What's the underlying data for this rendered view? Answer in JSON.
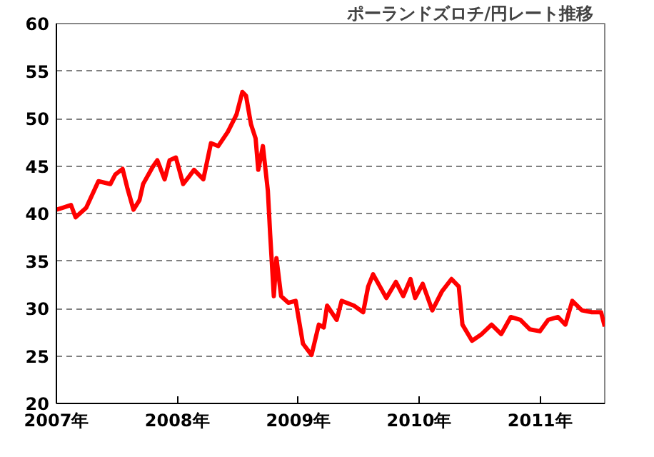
{
  "chart_data": {
    "type": "line",
    "title": "ポーランドズロチ/円レート推移",
    "x": [
      "2007-01-01",
      "2007-01-19",
      "2007-02-14",
      "2007-02-28",
      "2007-04-01",
      "2007-05-08",
      "2007-06-13",
      "2007-06-28",
      "2007-07-20",
      "2007-08-04",
      "2007-08-22",
      "2007-09-09",
      "2007-09-20",
      "2007-10-19",
      "2007-11-02",
      "2007-11-24",
      "2007-12-09",
      "2007-12-28",
      "2008-01-19",
      "2008-02-06",
      "2008-02-21",
      "2008-03-20",
      "2008-04-12",
      "2008-05-04",
      "2008-06-02",
      "2008-06-28",
      "2008-07-16",
      "2008-07-27",
      "2008-08-11",
      "2008-08-25",
      "2008-09-02",
      "2008-09-16",
      "2008-10-01",
      "2008-10-08",
      "2008-10-19",
      "2008-10-27",
      "2008-11-10",
      "2008-12-02",
      "2008-12-24",
      "2009-01-15",
      "2009-02-10",
      "2009-03-04",
      "2009-03-19",
      "2009-03-29",
      "2009-04-27",
      "2009-05-12",
      "2009-06-18",
      "2009-07-16",
      "2009-07-31",
      "2009-08-15",
      "2009-09-24",
      "2009-10-23",
      "2009-11-14",
      "2009-12-06",
      "2009-12-20",
      "2010-01-12",
      "2010-02-10",
      "2010-03-11",
      "2010-04-09",
      "2010-05-01",
      "2010-05-12",
      "2010-06-10",
      "2010-07-09",
      "2010-08-08",
      "2010-09-06",
      "2010-10-05",
      "2010-11-03",
      "2010-12-02",
      "2011-01-01",
      "2011-01-26",
      "2011-02-25",
      "2011-03-19",
      "2011-04-09",
      "2011-05-08",
      "2011-06-07",
      "2011-07-05",
      "2011-07-16"
    ],
    "series": [
      {
        "color": "#ff0000",
        "values": [
          40.4,
          40.6,
          40.9,
          39.6,
          40.6,
          43.4,
          43.1,
          44.1,
          44.7,
          42.6,
          40.4,
          41.4,
          43.1,
          44.9,
          45.6,
          43.6,
          45.6,
          45.9,
          43.1,
          43.9,
          44.6,
          43.6,
          47.4,
          47.1,
          48.6,
          50.4,
          52.8,
          52.4,
          49.4,
          47.9,
          44.6,
          47.1,
          42.4,
          37.8,
          31.3,
          35.3,
          31.3,
          30.6,
          30.8,
          26.3,
          25.1,
          28.3,
          28.0,
          30.3,
          28.8,
          30.8,
          30.3,
          29.6,
          32.3,
          33.6,
          31.1,
          32.8,
          31.3,
          33.1,
          31.1,
          32.6,
          29.8,
          31.8,
          33.1,
          32.3,
          28.3,
          26.6,
          27.3,
          28.3,
          27.3,
          29.1,
          28.8,
          27.8,
          27.6,
          28.8,
          29.1,
          28.3,
          30.8,
          29.8,
          29.6,
          29.6,
          28.1
        ]
      }
    ],
    "xlim": [
      "2007-01-01",
      "2011-07-16"
    ],
    "xticks": [
      {
        "value": "2007-01-01",
        "label": "2007年"
      },
      {
        "value": "2008-01-01",
        "label": "2008年"
      },
      {
        "value": "2009-01-01",
        "label": "2009年"
      },
      {
        "value": "2010-01-01",
        "label": "2010年"
      },
      {
        "value": "2011-01-01",
        "label": "2011年"
      }
    ],
    "ylim": [
      20,
      60
    ],
    "yticks": [
      20,
      25,
      30,
      35,
      40,
      45,
      50,
      55,
      60
    ],
    "grid": "y"
  }
}
